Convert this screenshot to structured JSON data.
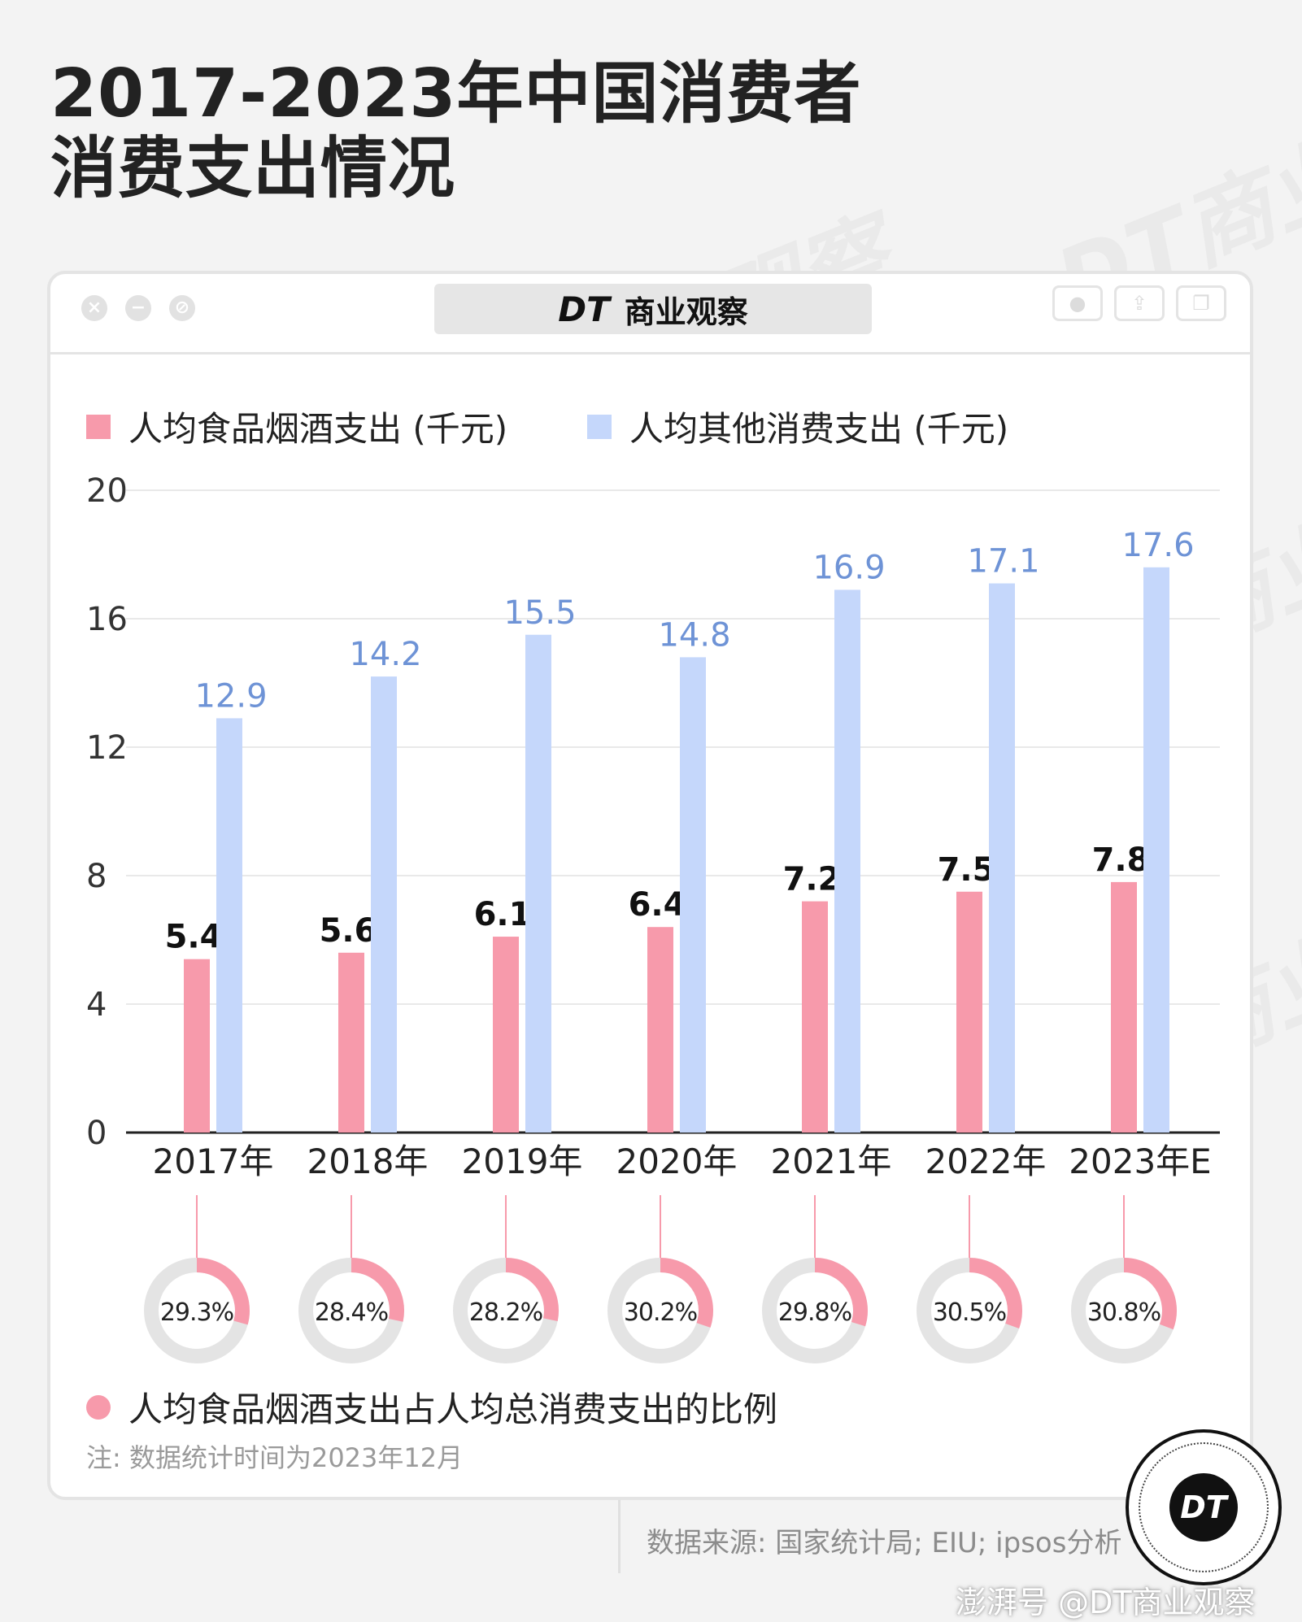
{
  "title": {
    "line1": "2017-2023年中国消费者",
    "line2": "消费支出情况"
  },
  "window": {
    "brand_logo": "DT",
    "brand_name": "商业观察"
  },
  "legend": {
    "food": "人均食品烟酒支出 (千元)",
    "other": "人均其他消费支出 (千元)",
    "ratio": "人均食品烟酒支出占人均总消费支出的比例"
  },
  "colors": {
    "food": "#f79aab",
    "other": "#c5d7fb",
    "other_label": "#6e93d6",
    "ring_track": "#e4e4e4"
  },
  "chart_data": {
    "type": "bar",
    "categories": [
      "2017年",
      "2018年",
      "2019年",
      "2020年",
      "2021年",
      "2022年",
      "2023年E"
    ],
    "series": [
      {
        "name": "人均食品烟酒支出 (千元)",
        "values": [
          5.4,
          5.6,
          6.1,
          6.4,
          7.2,
          7.5,
          7.8
        ],
        "labels": [
          "5.4",
          "5.6",
          "6.1",
          "6.4",
          "7.2",
          "7.5",
          "7.8"
        ]
      },
      {
        "name": "人均其他消费支出 (千元)",
        "values": [
          12.9,
          14.2,
          15.5,
          14.8,
          16.9,
          17.1,
          17.6
        ],
        "labels": [
          "12.9",
          "14.2",
          "15.5",
          "14.8",
          "16.9",
          "17.1",
          "17.6"
        ]
      }
    ],
    "ratio": {
      "name": "人均食品烟酒支出占人均总消费支出的比例",
      "values": [
        29.3,
        28.4,
        28.2,
        30.2,
        29.8,
        30.5,
        30.8
      ],
      "labels": [
        "29.3%",
        "28.4%",
        "28.2%",
        "30.2%",
        "29.8%",
        "30.5%",
        "30.8%"
      ]
    },
    "ylim": [
      0,
      20
    ],
    "yticks": [
      "0",
      "4",
      "8",
      "12",
      "16",
      "20"
    ],
    "grid": true,
    "legend_position": "top-left"
  },
  "footnote": "注: 数据统计时间为2023年12月",
  "source": "数据来源: 国家统计局; EIU; ipsos分析",
  "badge": "DT",
  "footer_watermark": "澎湃号 @DT商业观察",
  "watermark_text": "DT商业观察"
}
